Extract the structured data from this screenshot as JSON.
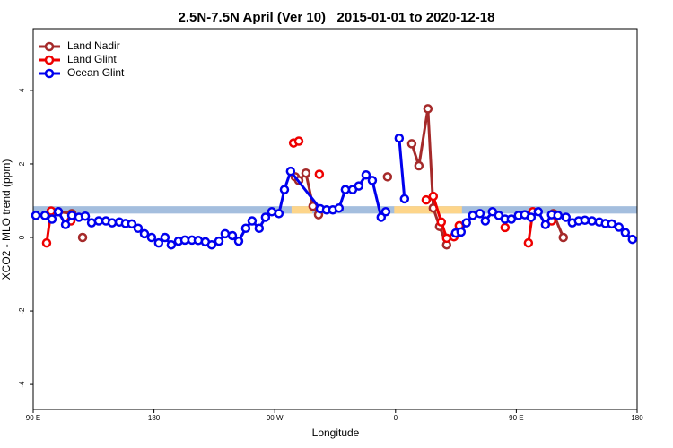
{
  "chart_data": {
    "type": "line",
    "title": "2.5N-7.5N April (Ver 10)   2015-01-01 to 2020-12-18",
    "xlabel": "Longitude",
    "ylabel": "XCO2 - MLO trend (ppm)",
    "xlim": [
      90,
      540
    ],
    "ylim": [
      -4.68,
      5.68
    ],
    "xticks": [
      {
        "value": 90,
        "label": "90 E"
      },
      180,
      {
        "value": 270,
        "label": "90 W"
      },
      {
        "value": 360,
        "label": "0"
      },
      {
        "value": 450,
        "label": "90 E"
      },
      {
        "value": 540,
        "label": "180"
      }
    ],
    "yticks": [
      -4,
      -2,
      0,
      2,
      4
    ],
    "legend": "top-left",
    "band": {
      "color": "#a4bede",
      "range": [
        0.65,
        0.85
      ]
    },
    "highlights": {
      "color": "#fdd58a",
      "ranges": [
        [
          282.5,
          298
        ],
        [
          359,
          409.5
        ]
      ]
    },
    "series": [
      {
        "name": "Land Nadir",
        "color": "#a52a2a",
        "x": [
          108.7,
          118.8,
          null,
          126.8,
          null,
          285.2,
          287.9,
          293.2,
          298.5,
          302.6,
          null,
          354.0,
          null,
          372.1,
          377.4,
          384.1,
          388.1,
          392.8,
          398.1,
          null,
          477.6,
          485.0
        ],
        "values": [
          0.7,
          0.65,
          null,
          0,
          null,
          1.65,
          1.55,
          1.75,
          0.85,
          0.62,
          null,
          1.65,
          null,
          2.55,
          1.95,
          3.5,
          0.8,
          0.3,
          -0.2,
          null,
          0.65,
          0
        ]
      },
      {
        "name": "Land Glint",
        "color": "#ee0000",
        "x": [
          100.0,
          103.4,
          null,
          118.1,
          null,
          284.0,
          null,
          287.9,
          null,
          303.2,
          null,
          382.8,
          388.1,
          394.1,
          398.1,
          403.5,
          407.5,
          null,
          441.6,
          null,
          459.0,
          462.3,
          null,
          476.3
        ],
        "values": [
          -0.15,
          0.72,
          null,
          0.45,
          null,
          2.57,
          null,
          2.62,
          null,
          1.72,
          null,
          1.02,
          1.12,
          0.42,
          -0.02,
          0.02,
          0.32,
          null,
          0.27,
          null,
          -0.15,
          0.7,
          null,
          0.45
        ]
      },
      {
        "name": "Ocean Glint",
        "color": "#0000ee",
        "x": [
          92.0,
          98.7,
          104.0,
          108.7,
          114.1,
          118.8,
          124.1,
          128.8,
          133.5,
          138.8,
          144.2,
          148.8,
          154.2,
          158.8,
          163.5,
          168.2,
          172.9,
          178.2,
          183.5,
          188.2,
          192.9,
          198.3,
          203.0,
          208.3,
          213.0,
          218.3,
          223.0,
          228.4,
          233.0,
          238.4,
          243.1,
          248.4,
          253.1,
          258.4,
          263.1,
          267.8,
          273.1,
          277.2,
          281.8,
          303.9,
          308.6,
          313.3,
          317.9,
          322.6,
          328.0,
          332.6,
          338.0,
          342.7,
          349.3,
          352.7,
          null,
          362.7,
          366.7,
          null,
          404.8,
          408.8,
          412.8,
          417.5,
          422.9,
          426.9,
          432.2,
          436.9,
          441.6,
          446.3,
          451.6,
          456.3,
          461.0,
          466.3,
          471.7,
          476.3,
          481.0,
          487.0,
          491.7,
          496.4,
          501.1,
          506.4,
          511.8,
          516.4,
          521.1,
          526.5,
          531.2,
          536.5
        ],
        "values": [
          0.6,
          0.6,
          0.5,
          0.7,
          0.35,
          0.6,
          0.55,
          0.58,
          0.4,
          0.45,
          0.45,
          0.4,
          0.42,
          0.38,
          0.37,
          0.25,
          0.1,
          0,
          -0.15,
          0,
          -0.2,
          -0.1,
          -0.07,
          -0.07,
          -0.08,
          -0.12,
          -0.2,
          -0.1,
          0.1,
          0.05,
          -0.1,
          0.25,
          0.45,
          0.25,
          0.55,
          0.7,
          0.65,
          1.3,
          1.8,
          0.78,
          0.75,
          0.75,
          0.8,
          1.3,
          1.3,
          1.4,
          1.7,
          1.55,
          0.55,
          0.7,
          null,
          2.7,
          1.05,
          null,
          0.12,
          0.15,
          0.4,
          0.6,
          0.65,
          0.45,
          0.7,
          0.6,
          0.5,
          0.5,
          0.6,
          0.62,
          0.55,
          0.7,
          0.35,
          0.62,
          0.6,
          0.55,
          0.4,
          0.45,
          0.47,
          0.45,
          0.42,
          0.38,
          0.37,
          0.28,
          0.13,
          -0.05
        ]
      }
    ]
  }
}
